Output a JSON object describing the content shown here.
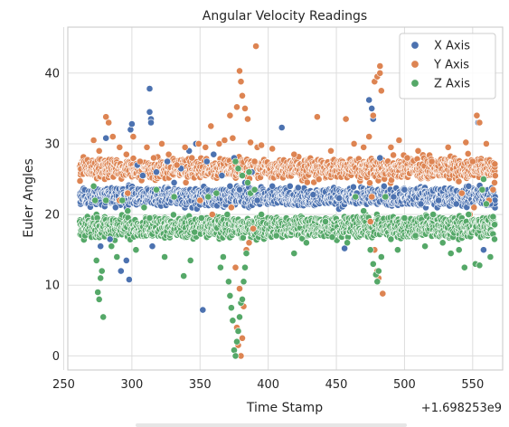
{
  "chart_data": {
    "type": "scatter",
    "title": "Angular Velocity Readings",
    "xlabel": "Time Stamp",
    "ylabel": "Euler Angles",
    "x_offset_label": "+1.698253e9",
    "xlim": [
      253,
      572
    ],
    "ylim": [
      -2,
      46.5
    ],
    "xticks": [
      250,
      300,
      350,
      400,
      450,
      500,
      550
    ],
    "yticks": [
      0,
      10,
      20,
      30,
      40
    ],
    "grid": true,
    "legend_position": "top-right",
    "series": [
      {
        "name": "X Axis",
        "color": "#4c72b0",
        "baseline": 22.5,
        "points": [
          [
            277,
            15.5
          ],
          [
            281,
            30.8
          ],
          [
            284,
            16.5
          ],
          [
            288,
            21.0
          ],
          [
            292,
            12.0
          ],
          [
            296,
            13.5
          ],
          [
            298,
            10.8
          ],
          [
            299,
            32.0
          ],
          [
            300,
            32.8
          ],
          [
            304,
            27.0
          ],
          [
            308,
            25.5
          ],
          [
            311,
            29.5
          ],
          [
            313,
            37.8
          ],
          [
            313,
            34.5
          ],
          [
            314,
            33.5
          ],
          [
            314,
            33.0
          ],
          [
            315,
            15.5
          ],
          [
            318,
            26.0
          ],
          [
            326,
            27.5
          ],
          [
            331,
            24.5
          ],
          [
            336,
            26.5
          ],
          [
            342,
            29.0
          ],
          [
            347,
            30.0
          ],
          [
            352,
            6.5
          ],
          [
            355,
            27.5
          ],
          [
            360,
            28.5
          ],
          [
            366,
            25.5
          ],
          [
            372,
            24.0
          ],
          [
            375,
            28.0
          ],
          [
            379,
            23.5
          ],
          [
            383,
            24.5
          ],
          [
            388,
            26.0
          ],
          [
            392,
            22.0
          ],
          [
            403,
            24.0
          ],
          [
            410,
            32.3
          ],
          [
            416,
            24.0
          ],
          [
            422,
            23.8
          ],
          [
            433,
            22.8
          ],
          [
            452,
            22.3
          ],
          [
            456,
            15.2
          ],
          [
            465,
            23.0
          ],
          [
            474,
            36.2
          ],
          [
            476,
            35.0
          ],
          [
            477,
            33.5
          ],
          [
            482,
            28.0
          ],
          [
            485,
            24.0
          ],
          [
            492,
            22.5
          ],
          [
            500,
            23.5
          ],
          [
            512,
            21.5
          ],
          [
            525,
            22.0
          ],
          [
            538,
            21.5
          ],
          [
            547,
            24.0
          ],
          [
            554,
            33.0
          ],
          [
            558,
            15.0
          ],
          [
            563,
            21.5
          ]
        ]
      },
      {
        "name": "Y Axis",
        "color": "#dd8452",
        "baseline": 26.5,
        "points": [
          [
            272,
            30.5
          ],
          [
            276,
            29.0
          ],
          [
            281,
            33.8
          ],
          [
            283,
            33.0
          ],
          [
            286,
            31.0
          ],
          [
            291,
            29.5
          ],
          [
            296,
            28.5
          ],
          [
            301,
            31.0
          ],
          [
            306,
            27.5
          ],
          [
            311,
            29.5
          ],
          [
            316,
            28.0
          ],
          [
            322,
            30.0
          ],
          [
            327,
            28.5
          ],
          [
            333,
            27.0
          ],
          [
            339,
            29.5
          ],
          [
            344,
            28.0
          ],
          [
            349,
            30.0
          ],
          [
            354,
            29.5
          ],
          [
            358,
            32.5
          ],
          [
            364,
            30.0
          ],
          [
            368,
            30.5
          ],
          [
            372,
            34.0
          ],
          [
            374,
            30.8
          ],
          [
            377,
            35.2
          ],
          [
            379,
            40.3
          ],
          [
            380,
            38.8
          ],
          [
            381,
            36.8
          ],
          [
            383,
            35.0
          ],
          [
            385,
            33.5
          ],
          [
            387,
            30.2
          ],
          [
            390,
            27.5
          ],
          [
            391,
            43.8
          ],
          [
            392,
            29.5
          ],
          [
            395,
            29.8
          ],
          [
            403,
            29.3
          ],
          [
            419,
            28.5
          ],
          [
            436,
            33.8
          ],
          [
            446,
            29.0
          ],
          [
            457,
            33.5
          ],
          [
            463,
            30.0
          ],
          [
            470,
            29.5
          ],
          [
            474,
            31.0
          ],
          [
            477,
            34.0
          ],
          [
            478,
            38.8
          ],
          [
            480,
            39.5
          ],
          [
            482,
            41.0
          ],
          [
            482,
            40.0
          ],
          [
            483,
            37.5
          ],
          [
            484,
            8.8
          ],
          [
            490,
            29.5
          ],
          [
            496,
            30.5
          ],
          [
            502,
            28.0
          ],
          [
            510,
            29.0
          ],
          [
            520,
            27.5
          ],
          [
            532,
            29.5
          ],
          [
            545,
            30.2
          ],
          [
            550,
            27.5
          ],
          [
            553,
            34.0
          ],
          [
            555,
            33.0
          ],
          [
            560,
            30.0
          ],
          [
            378,
            1.5
          ],
          [
            380,
            0.0
          ],
          [
            381,
            2.5
          ],
          [
            377,
            4.0
          ],
          [
            382,
            7.0
          ],
          [
            379,
            9.5
          ],
          [
            376,
            12.5
          ],
          [
            384,
            15.0
          ],
          [
            386,
            16.0
          ],
          [
            389,
            18.0
          ],
          [
            373,
            21.0
          ],
          [
            359,
            20.0
          ],
          [
            297,
            23.0
          ],
          [
            291,
            22.0
          ],
          [
            350,
            22.0
          ],
          [
            475,
            19.0
          ],
          [
            478,
            15.0
          ],
          [
            480,
            12.0
          ],
          [
            481,
            11.0
          ],
          [
            476,
            22.5
          ],
          [
            542,
            23.0
          ],
          [
            548,
            20.0
          ],
          [
            551,
            21.0
          ],
          [
            562,
            22.0
          ],
          [
            565,
            23.5
          ],
          [
            566,
            24.5
          ]
        ]
      },
      {
        "name": "Z Axis",
        "color": "#55a868",
        "baseline": 18.2,
        "points": [
          [
            272,
            24.0
          ],
          [
            273,
            22.0
          ],
          [
            274,
            13.5
          ],
          [
            275,
            9.0
          ],
          [
            276,
            8.0
          ],
          [
            277,
            11.0
          ],
          [
            278,
            12.0
          ],
          [
            279,
            5.5
          ],
          [
            281,
            22.0
          ],
          [
            285,
            15.5
          ],
          [
            289,
            14.0
          ],
          [
            293,
            22.0
          ],
          [
            297,
            20.5
          ],
          [
            303,
            15.0
          ],
          [
            309,
            21.0
          ],
          [
            313,
            19.5
          ],
          [
            318,
            23.5
          ],
          [
            324,
            14.0
          ],
          [
            331,
            22.5
          ],
          [
            338,
            11.3
          ],
          [
            343,
            13.5
          ],
          [
            346,
            17.5
          ],
          [
            351,
            19.5
          ],
          [
            356,
            22.5
          ],
          [
            362,
            23.0
          ],
          [
            365,
            12.5
          ],
          [
            367,
            14.0
          ],
          [
            370,
            20.0
          ],
          [
            371,
            10.5
          ],
          [
            372,
            8.5
          ],
          [
            373,
            6.8
          ],
          [
            374,
            5.0
          ],
          [
            375,
            0.8
          ],
          [
            376,
            0.0
          ],
          [
            377,
            2.0
          ],
          [
            378,
            3.5
          ],
          [
            379,
            5.5
          ],
          [
            380,
            7.5
          ],
          [
            381,
            8.0
          ],
          [
            382,
            10.5
          ],
          [
            383,
            12.5
          ],
          [
            384,
            14.5
          ],
          [
            385,
            24.5
          ],
          [
            386,
            26.0
          ],
          [
            387,
            23.0
          ],
          [
            376,
            27.5
          ],
          [
            378,
            26.5
          ],
          [
            381,
            25.5
          ],
          [
            390,
            23.5
          ],
          [
            395,
            20.0
          ],
          [
            406,
            17.0
          ],
          [
            419,
            14.5
          ],
          [
            428,
            16.0
          ],
          [
            442,
            19.0
          ],
          [
            447,
            16.8
          ],
          [
            458,
            16.0
          ],
          [
            464,
            22.5
          ],
          [
            470,
            20.5
          ],
          [
            475,
            15.0
          ],
          [
            477,
            13.0
          ],
          [
            479,
            11.5
          ],
          [
            480,
            10.5
          ],
          [
            481,
            12.0
          ],
          [
            483,
            14.0
          ],
          [
            486,
            22.5
          ],
          [
            490,
            16.5
          ],
          [
            495,
            15.0
          ],
          [
            500,
            19.5
          ],
          [
            508,
            17.0
          ],
          [
            515,
            15.5
          ],
          [
            521,
            20.0
          ],
          [
            528,
            16.0
          ],
          [
            534,
            14.5
          ],
          [
            540,
            15.0
          ],
          [
            544,
            12.5
          ],
          [
            547,
            20.0
          ],
          [
            552,
            13.0
          ],
          [
            555,
            12.8
          ],
          [
            557,
            23.5
          ],
          [
            558,
            25.0
          ],
          [
            560,
            21.5
          ],
          [
            563,
            14.0
          ],
          [
            566,
            16.5
          ]
        ]
      }
    ]
  }
}
